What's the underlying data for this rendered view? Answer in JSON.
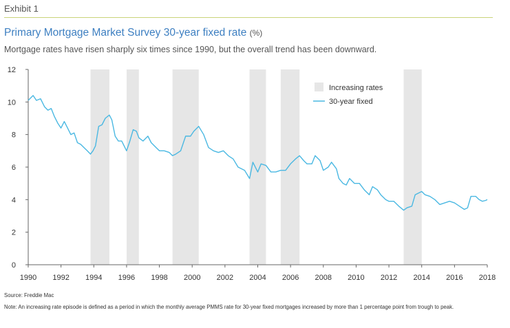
{
  "header": {
    "exhibit": "Exhibit 1",
    "title": "Primary Mortgage Market Survey 30-year fixed rate",
    "title_unit": "(%)",
    "subtitle": "Mortgage rates have risen sharply six times since 1990, but the overall trend has been downward."
  },
  "footer": {
    "source": "Source: Freddie Mac",
    "note": "Note: An increasing rate episode is defined as a period in which the monthly average PMMS rate for 30-year fixed mortgages increased by more than 1 percentage point from trough to peak."
  },
  "chart_data": {
    "type": "line",
    "title": "Primary Mortgage Market Survey 30-year fixed rate (%)",
    "xlim": [
      1990,
      2018
    ],
    "ylim": [
      0,
      12
    ],
    "x_ticks": [
      1990,
      1992,
      1994,
      1996,
      1998,
      2000,
      2002,
      2004,
      2006,
      2008,
      2010,
      2012,
      2014,
      2016,
      2018
    ],
    "x_tick_labels": [
      "1990",
      "1992",
      "1994",
      "1996",
      "1998",
      "2000",
      "2002",
      "2004",
      "2006",
      "2008",
      "2010",
      "2012",
      "2014",
      "2016",
      "2018"
    ],
    "y_ticks": [
      0,
      2,
      4,
      6,
      8,
      10,
      12
    ],
    "y_tick_labels": [
      "0",
      "2",
      "4",
      "6",
      "8",
      "10",
      "12"
    ],
    "grid": false,
    "legend_position": "top-right",
    "colors": {
      "line": "#4ab8e2",
      "shading": "#e6e6e6",
      "axis": "#666666"
    },
    "shaded_periods": {
      "name": "Increasing rates",
      "ranges": [
        [
          1993.8,
          1994.95
        ],
        [
          1996.0,
          1996.75
        ],
        [
          1998.8,
          2000.4
        ],
        [
          2003.5,
          2004.5
        ],
        [
          2005.4,
          2006.55
        ],
        [
          2012.9,
          2014.0
        ]
      ]
    },
    "series": [
      {
        "name": "30-year fixed",
        "x": [
          1990.0,
          1990.3,
          1990.5,
          1990.75,
          1991.0,
          1991.2,
          1991.4,
          1991.6,
          1991.8,
          1992.0,
          1992.2,
          1992.4,
          1992.6,
          1992.8,
          1993.0,
          1993.2,
          1993.4,
          1993.6,
          1993.8,
          1993.95,
          1994.1,
          1994.3,
          1994.5,
          1994.7,
          1994.95,
          1995.1,
          1995.3,
          1995.5,
          1995.7,
          1996.0,
          1996.2,
          1996.4,
          1996.6,
          1996.75,
          1997.0,
          1997.3,
          1997.5,
          1997.8,
          1998.0,
          1998.3,
          1998.6,
          1998.8,
          1999.0,
          1999.3,
          1999.6,
          1999.9,
          2000.1,
          2000.4,
          2000.7,
          2001.0,
          2001.3,
          2001.6,
          2001.9,
          2002.2,
          2002.5,
          2002.8,
          2003.0,
          2003.2,
          2003.5,
          2003.7,
          2004.0,
          2004.2,
          2004.5,
          2004.8,
          2005.1,
          2005.4,
          2005.7,
          2006.0,
          2006.3,
          2006.55,
          2006.8,
          2007.0,
          2007.3,
          2007.5,
          2007.8,
          2008.0,
          2008.3,
          2008.5,
          2008.8,
          2008.95,
          2009.2,
          2009.4,
          2009.6,
          2009.9,
          2010.2,
          2010.5,
          2010.8,
          2011.0,
          2011.3,
          2011.5,
          2011.8,
          2012.0,
          2012.3,
          2012.6,
          2012.9,
          2013.1,
          2013.4,
          2013.6,
          2013.8,
          2014.0,
          2014.2,
          2014.5,
          2014.8,
          2015.1,
          2015.4,
          2015.7,
          2016.0,
          2016.3,
          2016.6,
          2016.8,
          2017.0,
          2017.3,
          2017.5,
          2017.7,
          2017.9,
          2018.0
        ],
        "values": [
          10.1,
          10.4,
          10.1,
          10.2,
          9.7,
          9.5,
          9.6,
          9.1,
          8.7,
          8.4,
          8.8,
          8.4,
          8.0,
          8.1,
          7.5,
          7.4,
          7.2,
          7.0,
          6.8,
          7.0,
          7.3,
          8.5,
          8.6,
          9.0,
          9.2,
          8.9,
          7.9,
          7.6,
          7.6,
          7.0,
          7.6,
          8.3,
          8.2,
          7.8,
          7.6,
          7.9,
          7.5,
          7.2,
          7.0,
          7.0,
          6.9,
          6.7,
          6.8,
          7.0,
          7.9,
          7.9,
          8.2,
          8.5,
          8.0,
          7.2,
          7.0,
          6.9,
          7.0,
          6.7,
          6.5,
          6.0,
          5.9,
          5.8,
          5.3,
          6.3,
          5.7,
          6.2,
          6.1,
          5.7,
          5.7,
          5.8,
          5.8,
          6.2,
          6.5,
          6.7,
          6.4,
          6.2,
          6.2,
          6.7,
          6.4,
          5.8,
          6.0,
          6.3,
          5.9,
          5.3,
          5.0,
          4.9,
          5.3,
          5.0,
          5.0,
          4.6,
          4.3,
          4.8,
          4.6,
          4.3,
          4.0,
          3.9,
          3.9,
          3.6,
          3.35,
          3.5,
          3.6,
          4.3,
          4.4,
          4.5,
          4.3,
          4.2,
          4.0,
          3.7,
          3.8,
          3.9,
          3.8,
          3.6,
          3.4,
          3.5,
          4.2,
          4.2,
          4.0,
          3.9,
          3.95,
          4.0
        ]
      }
    ]
  }
}
